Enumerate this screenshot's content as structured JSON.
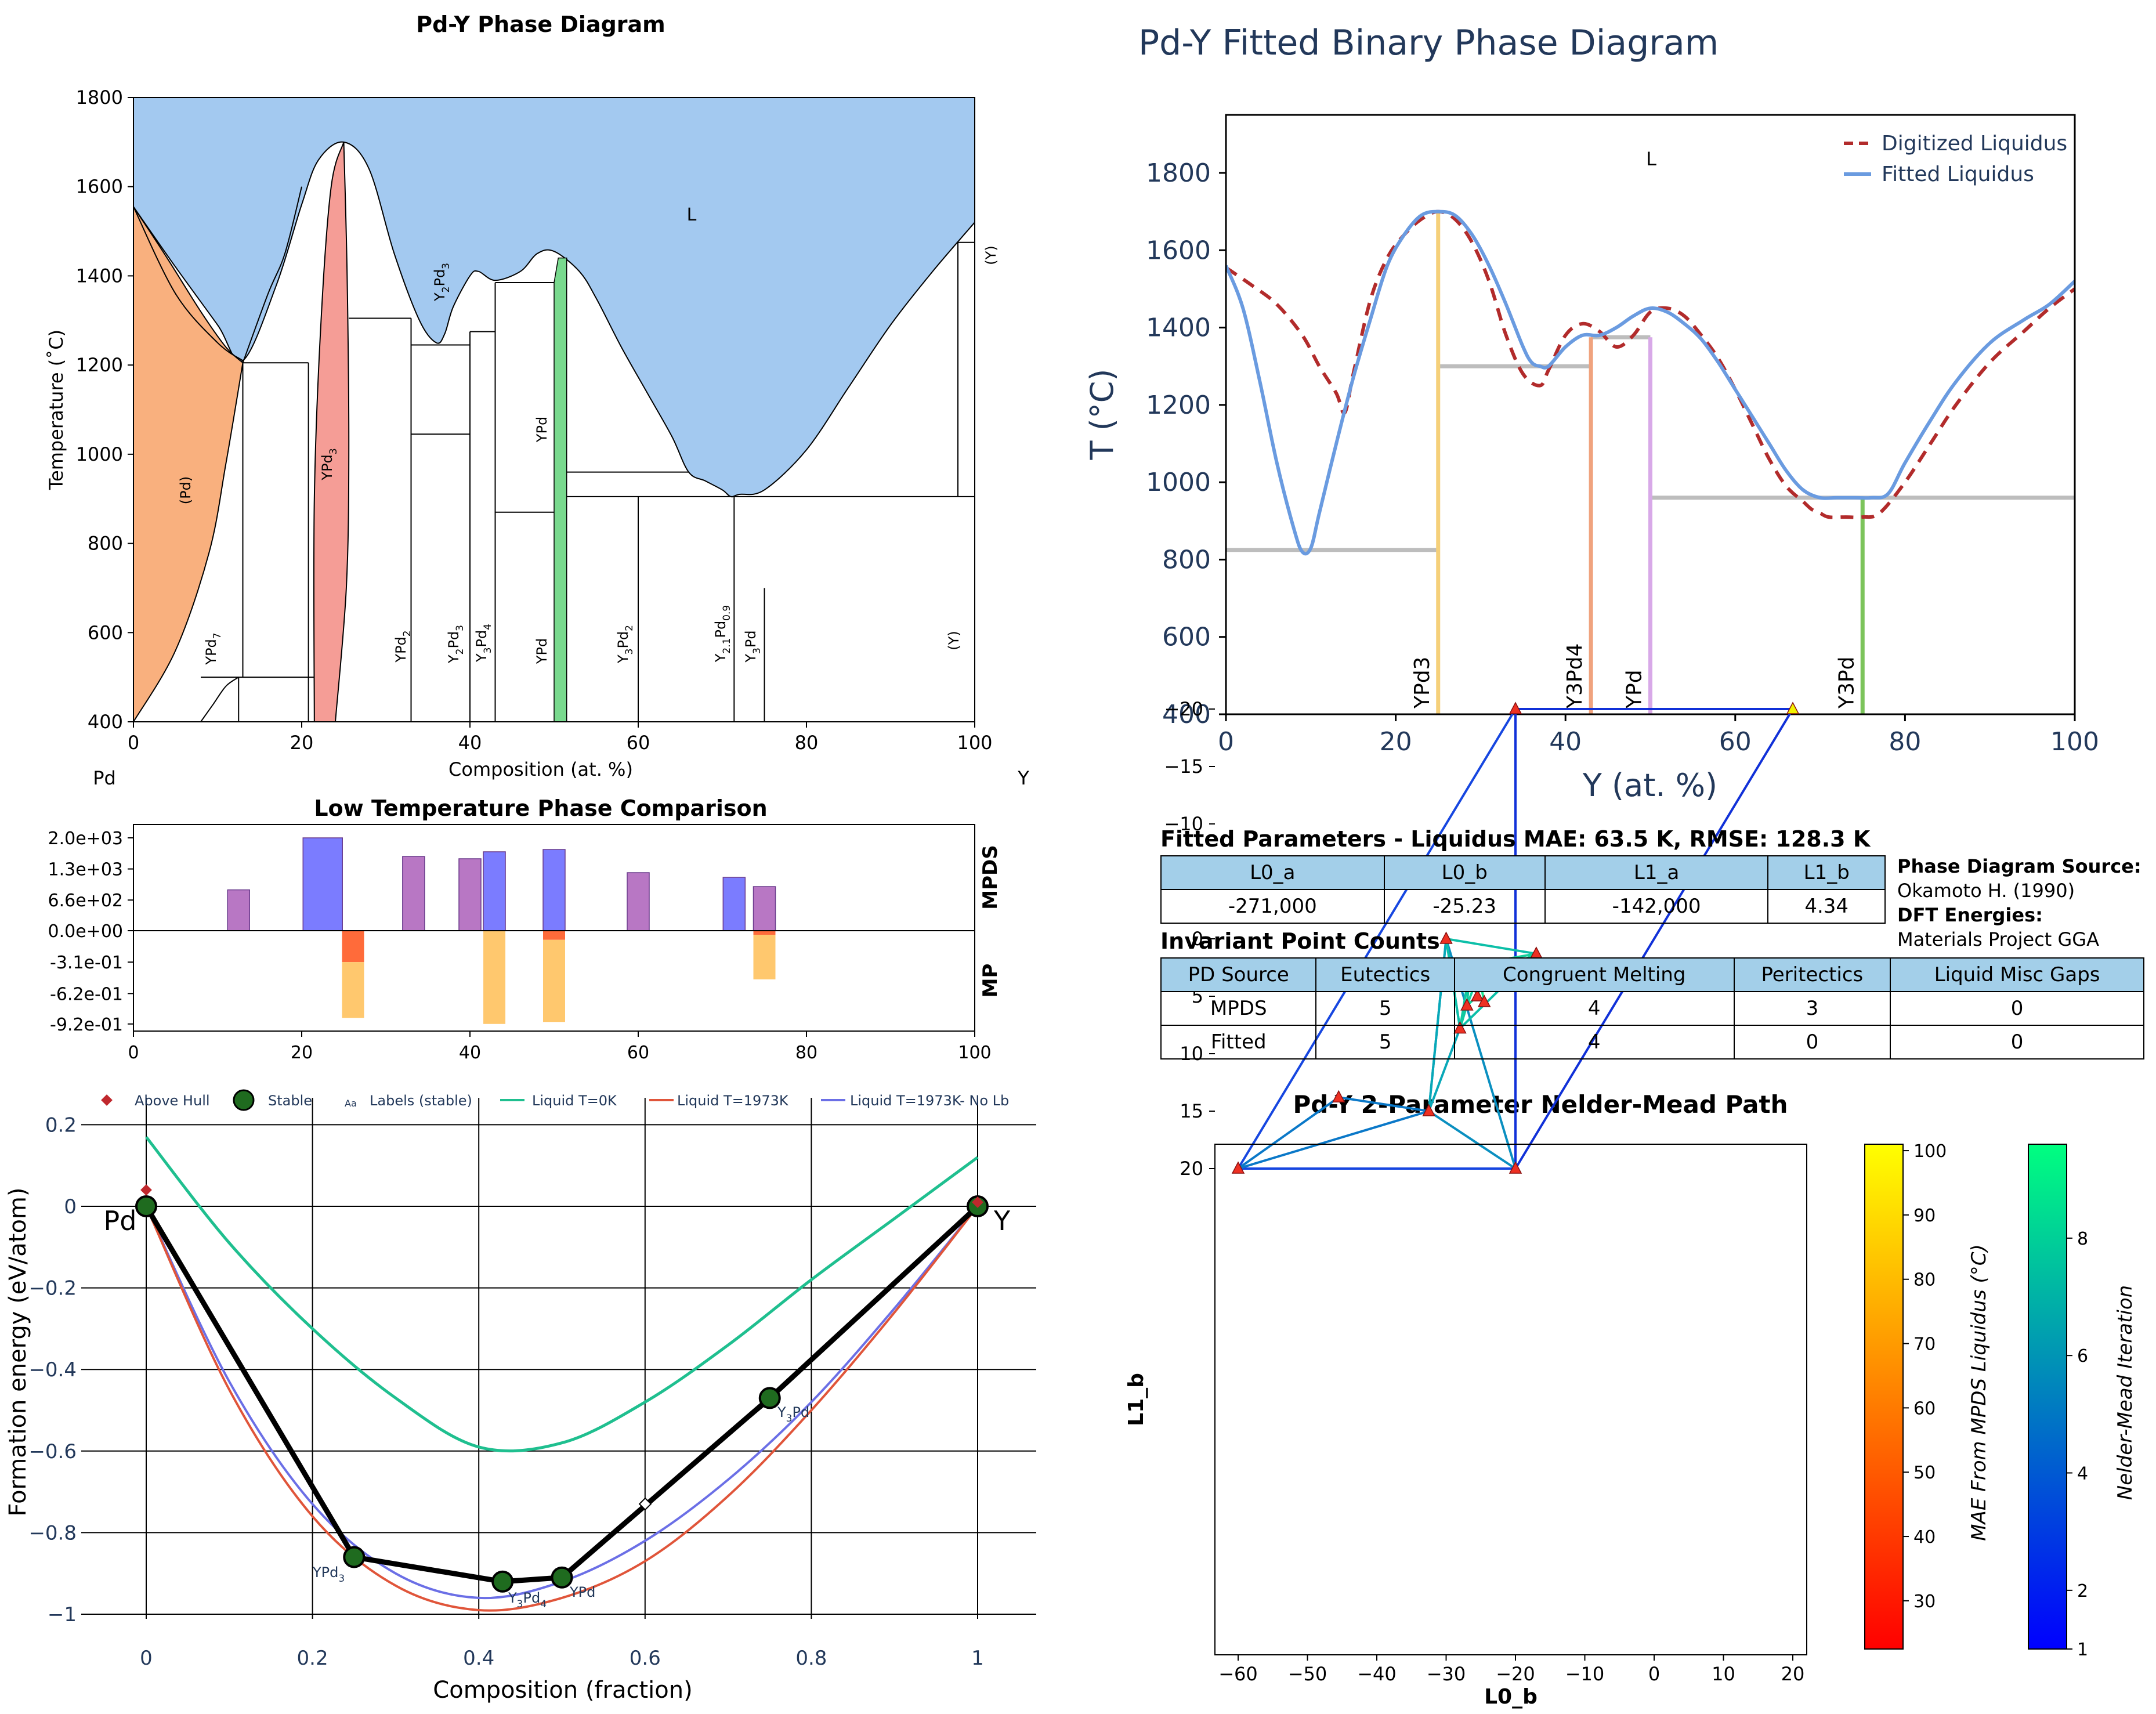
{
  "panel_a": {
    "title": "Pd-Y Phase Diagram",
    "xlabel": "Composition (at. %)",
    "ylabel": "Temperature (˚C)",
    "left_element": "Pd",
    "right_element": "Y",
    "liquid_label": "L",
    "yticks": [
      "400",
      "600",
      "800",
      "1000",
      "1200",
      "1400",
      "1600",
      "1800"
    ],
    "xticks": [
      "0",
      "20",
      "40",
      "60",
      "80",
      "100"
    ],
    "colors": {
      "liquid": "#a3c9f0",
      "pd_ss": "#f9b07e",
      "ypd3": "#f59d96",
      "ypd": "#79d98e"
    },
    "phase_labels": {
      "pd": "(Pd)",
      "ypd7_main": "YPd",
      "ypd7_sub": "7",
      "ypd3_main": "YPd",
      "ypd3_sub": "3",
      "y2pd3_a": "Y",
      "y2pd3_b": "2",
      "y2pd3_c": "Pd",
      "y2pd3_d": "3",
      "ypd_upper": "YPd",
      "ypd2_main": "YPd",
      "ypd2_sub": "2",
      "y3pd4_a": "Y",
      "y3pd4_b": "3",
      "y3pd4_c": "Pd",
      "y3pd4_d": "4",
      "ypd_lower": "YPd",
      "y3pd2_a": "Y",
      "y3pd2_b": "3",
      "y3pd2_c": "Pd",
      "y3pd2_d": "2",
      "y21_a": "Y",
      "y21_b": "2.1",
      "y21_c": "Pd",
      "y21_d": "0.9",
      "y3pd_a": "Y",
      "y3pd_b": "3",
      "y3pd_c": "Pd",
      "y_low": "(Y)",
      "y_high": "(Y)"
    }
  },
  "panel_b": {
    "title": "Pd-Y Fitted Binary Phase Diagram",
    "xlabel": "Y (at. %)",
    "ylabel": "T (°C)",
    "liquid_label": "L",
    "legend": [
      "Digitized Liquidus",
      "Fitted Liquidus"
    ],
    "colors": {
      "digitized": "#b22b2b",
      "fitted": "#6a9be0",
      "tie": "#bdbdbd",
      "ypd3": "#f5d07a",
      "y3pd4": "#f0a37e",
      "ypd": "#d8a9e8",
      "y3pd": "#7cc45b",
      "text": "#22385a"
    },
    "xticks": [
      "0",
      "20",
      "40",
      "60",
      "80",
      "100"
    ],
    "yticks": [
      "400",
      "600",
      "800",
      "1000",
      "1200",
      "1400",
      "1600",
      "1800"
    ],
    "phase_labels": [
      "YPd3",
      "Y3Pd4",
      "YPd",
      "Y3Pd"
    ]
  },
  "panel_c": {
    "title": "Low Temperature Phase Comparison",
    "right_top": "MPDS",
    "right_bottom": "MP",
    "yticks": [
      "2.0e+03",
      "1.3e+03",
      "6.6e+02",
      "0.0e+00",
      "-3.1e-01",
      "-6.2e-01",
      "-9.2e-01"
    ],
    "xticks": [
      "0",
      "20",
      "40",
      "60",
      "80",
      "100"
    ]
  },
  "panel_d": {
    "xlabel": "Composition (fraction)",
    "ylabel": "Formation energy (eV/atom)",
    "xticks": [
      "0",
      "0.2",
      "0.4",
      "0.6",
      "0.8",
      "1"
    ],
    "yticks": [
      "0.2",
      "0",
      "−0.2",
      "−0.4",
      "−0.6",
      "−0.8",
      "−1"
    ],
    "legend": [
      "Above Hull",
      "Stable",
      "Labels (stable)",
      "Liquid T=0K",
      "Liquid T=1973K",
      "Liquid T=1973K- No Lb"
    ],
    "legend_icon_text": "Aa",
    "end_left": "Pd",
    "end_right": "Y",
    "point_labels": {
      "ypd3_a": "YPd",
      "ypd3_b": "3",
      "y3pd4_a": "Y",
      "y3pd4_b": "3",
      "y3pd4_c": "Pd",
      "y3pd4_d": "4",
      "ypd": "YPd",
      "y3pd_a": "Y",
      "y3pd_b": "3",
      "y3pd_c": "Pd"
    },
    "colors": {
      "t0": "#1fbf8f",
      "t1973": "#e0553a",
      "nolb": "#6b6fe6",
      "hull": "#000000",
      "stable": "#1f6b1f",
      "above": "#c0282d"
    }
  },
  "tables": {
    "fitted_title": "Fitted Parameters - Liquidus MAE: 63.5 K, RMSE: 128.3 K",
    "fitted_headers": [
      "L0_a",
      "L0_b",
      "L1_a",
      "L1_b"
    ],
    "fitted_values": [
      "-271,000",
      "-25.23",
      "-142,000",
      "4.34"
    ],
    "side_src_title": "Phase Diagram Source:",
    "side_src_value": "Okamoto H. (1990)",
    "side_dft_title": "DFT Energies:",
    "side_dft_value": "Materials Project GGA",
    "inv_title": "Invariant Point Counts",
    "inv_headers": [
      "PD Source",
      "Eutectics",
      "Congruent Melting",
      "Peritectics",
      "Liquid Misc Gaps"
    ],
    "inv_rows": [
      [
        "MPDS",
        "5",
        "4",
        "3",
        "0"
      ],
      [
        "Fitted",
        "5",
        "4",
        "0",
        "0"
      ]
    ]
  },
  "panel_e": {
    "title": "Pd-Y 2-Parameter Nelder-Mead Path",
    "xlabel": "L0_b",
    "ylabel": "L1_b",
    "xticks": [
      "−60",
      "−50",
      "−40",
      "−30",
      "−20",
      "−10",
      "0",
      "10",
      "20"
    ],
    "yticks": [
      "20",
      "15",
      "10",
      "5",
      "0",
      "−5",
      "−10",
      "−15",
      "−20"
    ],
    "cbar1_label": "MAE From MPDS Liquidus (°C)",
    "cbar1_ticks": [
      "30",
      "40",
      "50",
      "60",
      "70",
      "80",
      "90",
      "100"
    ],
    "cbar2_label": "Nelder-Mead Iteration",
    "cbar2_ticks": [
      "1",
      "2",
      "4",
      "6",
      "8"
    ]
  },
  "chart_data": [
    {
      "type": "area",
      "title": "Pd-Y Phase Diagram",
      "xlabel": "Composition (at. %)",
      "ylabel": "Temperature (˚C)",
      "xlim": [
        0,
        100
      ],
      "ylim": [
        400,
        1800
      ],
      "liquidus": {
        "x": [
          0,
          5,
          10,
          13,
          17,
          20,
          22,
          25,
          28,
          31,
          34,
          36,
          37,
          38,
          40,
          41,
          43,
          46,
          48,
          50,
          53,
          55,
          58,
          61,
          64,
          66,
          68,
          70,
          71,
          72,
          75,
          80,
          85,
          90,
          95,
          100
        ],
        "y": [
          1555,
          1420,
          1290,
          1210,
          1380,
          1560,
          1660,
          1700,
          1640,
          1450,
          1300,
          1250,
          1270,
          1330,
          1400,
          1410,
          1390,
          1410,
          1450,
          1455,
          1410,
          1350,
          1240,
          1140,
          1040,
          960,
          940,
          920,
          905,
          910,
          920,
          1010,
          1150,
          1290,
          1410,
          1520
        ]
      },
      "phase_regions": [
        "(Pd)",
        "YPd7",
        "YPd3",
        "Y2Pd3",
        "YPd",
        "YPd2",
        "Y3Pd4",
        "Y3Pd2",
        "Y2.1Pd0.9",
        "Y3Pd",
        "(Y)",
        "L"
      ]
    },
    {
      "type": "line",
      "title": "Pd-Y Fitted Binary Phase Diagram",
      "xlabel": "Y (at. %)",
      "ylabel": "T (°C)",
      "xlim": [
        0,
        100
      ],
      "ylim": [
        400,
        1950
      ],
      "series": [
        {
          "name": "Digitized Liquidus",
          "x": [
            0,
            3,
            6,
            9,
            11,
            13,
            14,
            15,
            17,
            19,
            21,
            23,
            25,
            27,
            29,
            31,
            33,
            35,
            37,
            38,
            40,
            42,
            44,
            46,
            48,
            50,
            52,
            54,
            56,
            58,
            60,
            62,
            64,
            66,
            68,
            69,
            70,
            71,
            73,
            75,
            77,
            80,
            83,
            86,
            90,
            94,
            97,
            100
          ],
          "y": [
            1555,
            1510,
            1460,
            1380,
            1300,
            1230,
            1180,
            1280,
            1470,
            1580,
            1640,
            1680,
            1700,
            1680,
            1620,
            1520,
            1380,
            1280,
            1250,
            1290,
            1380,
            1410,
            1390,
            1350,
            1380,
            1440,
            1450,
            1430,
            1380,
            1320,
            1240,
            1150,
            1060,
            990,
            950,
            930,
            920,
            910,
            910,
            910,
            920,
            1000,
            1100,
            1200,
            1310,
            1390,
            1450,
            1500
          ]
        },
        {
          "name": "Fitted Liquidus",
          "x": [
            0,
            2,
            4,
            6,
            8,
            9,
            10,
            11,
            13,
            15,
            17,
            19,
            21,
            23,
            25,
            27,
            29,
            31,
            33,
            35,
            36,
            37,
            38,
            40,
            42,
            44,
            46,
            48,
            50,
            52,
            54,
            56,
            58,
            60,
            62,
            64,
            66,
            68,
            70,
            72,
            74,
            76,
            78,
            80,
            83,
            86,
            90,
            94,
            97,
            100
          ],
          "y": [
            1560,
            1450,
            1260,
            1050,
            880,
            820,
            830,
            920,
            1100,
            1270,
            1420,
            1560,
            1640,
            1690,
            1700,
            1690,
            1640,
            1560,
            1460,
            1350,
            1310,
            1300,
            1300,
            1350,
            1380,
            1380,
            1400,
            1430,
            1450,
            1440,
            1410,
            1370,
            1310,
            1240,
            1170,
            1100,
            1030,
            980,
            960,
            960,
            960,
            960,
            970,
            1050,
            1160,
            1260,
            1360,
            1420,
            1460,
            1520
          ]
        }
      ],
      "tie_lines": [
        {
          "x": [
            0,
            25
          ],
          "y": 825
        },
        {
          "x": [
            25,
            43
          ],
          "y": 1300
        },
        {
          "x": [
            43,
            50
          ],
          "y": 1375
        },
        {
          "x": [
            50,
            100
          ],
          "y": 960
        }
      ],
      "compounds": [
        {
          "name": "YPd3",
          "x": 25,
          "top": 1700
        },
        {
          "name": "Y3Pd4",
          "x": 43,
          "top": 1375
        },
        {
          "name": "YPd",
          "x": 50,
          "top": 1375
        },
        {
          "name": "Y3Pd",
          "x": 75,
          "top": 960
        }
      ]
    },
    {
      "type": "bar",
      "title": "Low Temperature Phase Comparison",
      "xlim": [
        0,
        100
      ],
      "series": [
        {
          "name": "MPDS",
          "x": [
            12.5,
            22.5,
            33.3,
            40,
            42.9,
            50,
            60,
            71.4,
            75
          ],
          "y": [
            880,
            2000,
            1600,
            1550,
            1700,
            1750,
            1250,
            1150,
            950
          ]
        },
        {
          "name": "MP",
          "x": [
            25,
            25,
            42.9,
            50,
            50,
            75,
            75
          ],
          "y": [
            -0.31,
            -0.86,
            -0.92,
            -0.09,
            -0.9,
            -0.04,
            -0.48
          ]
        }
      ]
    },
    {
      "type": "scatter",
      "xlabel": "Composition (fraction)",
      "ylabel": "Formation energy (eV/atom)",
      "xlim": [
        -0.07,
        1.07
      ],
      "ylim": [
        -1.03,
        0.2
      ],
      "series": [
        {
          "name": "Stable",
          "x": [
            0,
            0.25,
            0.4286,
            0.5,
            0.75,
            1
          ],
          "y": [
            0,
            -0.86,
            -0.92,
            -0.91,
            -0.47,
            0
          ]
        },
        {
          "name": "Above Hull",
          "x": [
            0,
            1
          ],
          "y": [
            0.04,
            0.01
          ]
        },
        {
          "name": "Liquid T=0K",
          "x": [
            0,
            0.1,
            0.2,
            0.3,
            0.4,
            0.5,
            0.6,
            0.7,
            0.8,
            0.9,
            1
          ],
          "y": [
            0.17,
            -0.09,
            -0.3,
            -0.47,
            -0.59,
            -0.58,
            -0.48,
            -0.34,
            -0.18,
            -0.03,
            0.12
          ]
        },
        {
          "name": "Liquid T=1973K",
          "x": [
            0,
            0.1,
            0.2,
            0.3,
            0.4,
            0.5,
            0.6,
            0.7,
            0.8,
            0.9,
            1
          ],
          "y": [
            0,
            -0.45,
            -0.76,
            -0.93,
            -0.99,
            -0.96,
            -0.87,
            -0.71,
            -0.5,
            -0.26,
            0
          ]
        },
        {
          "name": "Liquid T=1973K- No Lb",
          "x": [
            0,
            0.1,
            0.2,
            0.3,
            0.4,
            0.5,
            0.6,
            0.7,
            0.8,
            0.9,
            1
          ],
          "y": [
            0,
            -0.43,
            -0.73,
            -0.9,
            -0.96,
            -0.92,
            -0.82,
            -0.67,
            -0.48,
            -0.25,
            0
          ]
        }
      ]
    },
    {
      "type": "scatter",
      "title": "Pd-Y 2-Parameter Nelder-Mead Path",
      "xlabel": "L0_b",
      "ylabel": "L1_b",
      "xlim": [
        -63,
        22
      ],
      "ylim": [
        -21.5,
        22
      ],
      "series": [
        {
          "name": "evaluated",
          "x": [
            -60,
            -20,
            20,
            -20,
            -45.5,
            -32.5,
            -30,
            -28,
            -17,
            -26.5,
            -27,
            -26,
            -25.5,
            -25,
            -23.5,
            -24.5
          ],
          "y": [
            20,
            20,
            -20,
            -20,
            13.8,
            15,
            0,
            7.8,
            1.3,
            2.3,
            5.8,
            4.2,
            5.0,
            4.0,
            3.2,
            5.5
          ]
        }
      ]
    }
  ]
}
